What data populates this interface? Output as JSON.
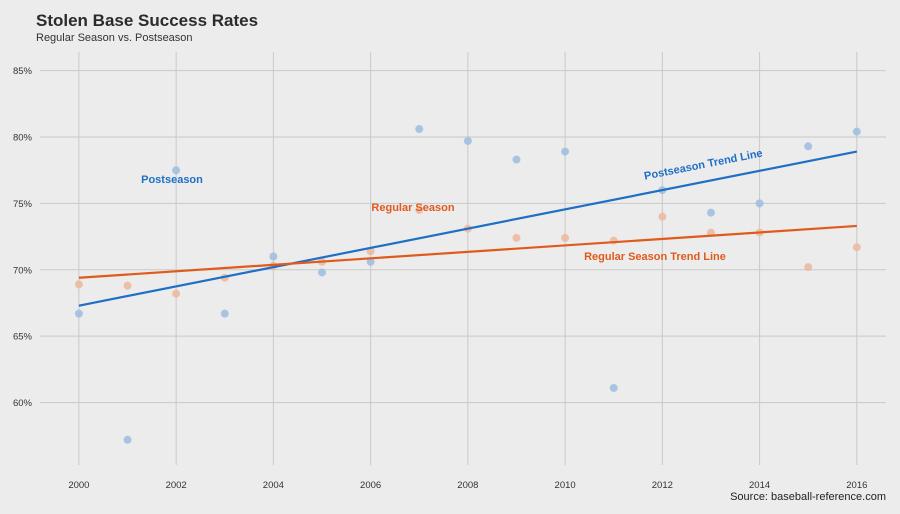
{
  "chart_data": {
    "type": "scatter",
    "title": "Stolen Base Success Rates",
    "subtitle": "Regular Season vs. Postseason",
    "source": "Source: baseball-reference.com",
    "xlabel": "",
    "ylabel": "",
    "xlim": [
      1999.2,
      2016.6
    ],
    "ylim": [
      0.553,
      0.864
    ],
    "x_ticks": [
      2000,
      2002,
      2004,
      2006,
      2008,
      2010,
      2012,
      2014,
      2016
    ],
    "x_tick_labels": [
      "2000",
      "2002",
      "2004",
      "2006",
      "2008",
      "2010",
      "2012",
      "2014",
      "2016"
    ],
    "y_ticks": [
      0.6,
      0.65,
      0.7,
      0.75,
      0.8,
      0.85
    ],
    "y_tick_labels": [
      "60%",
      "65%",
      "70%",
      "75%",
      "80%",
      "85%"
    ],
    "grid": true,
    "legend": "none",
    "series": [
      {
        "label": "Postseason",
        "color": "#1f6fc5",
        "point_color": "#9dbde2",
        "x": [
          2000,
          2001,
          2002,
          2003,
          2004,
          2005,
          2006,
          2007,
          2008,
          2009,
          2010,
          2011,
          2012,
          2013,
          2014,
          2015,
          2016
        ],
        "y": [
          0.667,
          0.572,
          0.775,
          0.667,
          0.71,
          0.698,
          0.706,
          0.806,
          0.797,
          0.783,
          0.789,
          0.611,
          0.76,
          0.743,
          0.75,
          0.793,
          0.804
        ],
        "trend": {
          "label": "Postseason Trend Line",
          "y_start": 0.673,
          "y_end": 0.789
        }
      },
      {
        "label": "Regular Season",
        "color": "#e05a1c",
        "point_color": "#efb79c",
        "x": [
          2000,
          2001,
          2002,
          2003,
          2004,
          2005,
          2006,
          2007,
          2008,
          2009,
          2010,
          2011,
          2012,
          2013,
          2014,
          2015,
          2016
        ],
        "y": [
          0.689,
          0.688,
          0.682,
          0.694,
          0.703,
          0.706,
          0.714,
          0.745,
          0.731,
          0.724,
          0.724,
          0.722,
          0.74,
          0.728,
          0.728,
          0.702,
          0.717
        ],
        "trend": {
          "label": "Regular Season Trend Line",
          "y_start": 0.694,
          "y_end": 0.733
        }
      }
    ]
  }
}
